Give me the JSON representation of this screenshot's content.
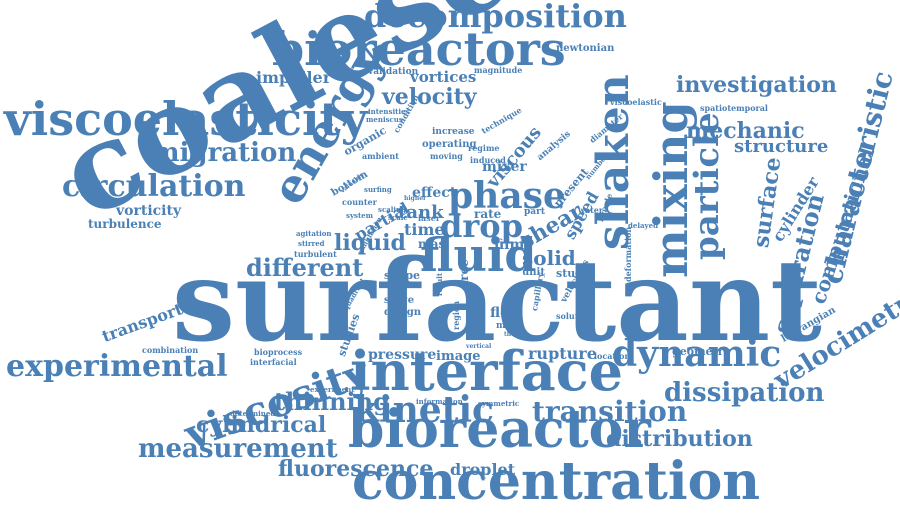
{
  "color": "#4a80b5",
  "words": [
    {
      "id": "coalescence",
      "text": "coalescence"
    },
    {
      "id": "surfactant",
      "text": "surfactant"
    },
    {
      "id": "interface",
      "text": "interface"
    },
    {
      "id": "bioreactor",
      "text": "bioreactor"
    },
    {
      "id": "concentration",
      "text": "concentration"
    },
    {
      "id": "bioreactors",
      "text": "bioreactors"
    },
    {
      "id": "decomposition",
      "text": "decomposition"
    },
    {
      "id": "viscoelasticity",
      "text": "viscoelasticity"
    },
    {
      "id": "energy",
      "text": "energy"
    },
    {
      "id": "fluid",
      "text": "fluid"
    },
    {
      "id": "mixing",
      "text": "mixing"
    },
    {
      "id": "shaken",
      "text": "shaken"
    },
    {
      "id": "phase",
      "text": "phase"
    },
    {
      "id": "drop",
      "text": "drop"
    },
    {
      "id": "viscosity",
      "text": "viscosity"
    },
    {
      "id": "kinetic",
      "text": "kinetic"
    },
    {
      "id": "dynamic",
      "text": "dynamic"
    },
    {
      "id": "transition",
      "text": "transition"
    },
    {
      "id": "experimental",
      "text": "experimental"
    },
    {
      "id": "circulation",
      "text": "circulation"
    },
    {
      "id": "migration",
      "text": "migration"
    },
    {
      "id": "particle",
      "text": "particle"
    },
    {
      "id": "characteristic",
      "text": "characteristic"
    },
    {
      "id": "separation",
      "text": "separation"
    },
    {
      "id": "velocimetry",
      "text": "velocimetry"
    },
    {
      "id": "computational",
      "text": "computational"
    },
    {
      "id": "investigation",
      "text": "investigation"
    },
    {
      "id": "mechanic",
      "text": "mechanic"
    },
    {
      "id": "structure",
      "text": "structure"
    },
    {
      "id": "surface",
      "text": "surface"
    },
    {
      "id": "cylinder",
      "text": "cylinder"
    },
    {
      "id": "dissipation",
      "text": "dissipation"
    },
    {
      "id": "distribution",
      "text": "distribution"
    },
    {
      "id": "measurement",
      "text": "measurement"
    },
    {
      "id": "cylindrical",
      "text": "cylindrical"
    },
    {
      "id": "thinning",
      "text": "thinning"
    },
    {
      "id": "fluorescence",
      "text": "fluorescence"
    },
    {
      "id": "droplet",
      "text": "droplet"
    },
    {
      "id": "different",
      "text": "different"
    },
    {
      "id": "liquid",
      "text": "liquid"
    },
    {
      "id": "velocity",
      "text": "velocity"
    },
    {
      "id": "impeller",
      "text": "impeller"
    },
    {
      "id": "vortices",
      "text": "vortices"
    },
    {
      "id": "vorticity",
      "text": "vorticity"
    },
    {
      "id": "turbulence",
      "text": "turbulence"
    },
    {
      "id": "transport",
      "text": "transport"
    },
    {
      "id": "viscous",
      "text": "viscous"
    },
    {
      "id": "shear",
      "text": "shear"
    },
    {
      "id": "solid",
      "text": "solid"
    },
    {
      "id": "speed",
      "text": "speed"
    },
    {
      "id": "geometry",
      "text": "geometry"
    },
    {
      "id": "lagrangian",
      "text": "lagrangian"
    },
    {
      "id": "rupture",
      "text": "rupture"
    },
    {
      "id": "pressure",
      "text": "pressure"
    },
    {
      "id": "image",
      "text": "image"
    },
    {
      "id": "partial",
      "text": "partial"
    },
    {
      "id": "studies",
      "text": "studies"
    },
    {
      "id": "time",
      "text": "time"
    },
    {
      "id": "tank",
      "text": "tank"
    },
    {
      "id": "mas",
      "text": "mas"
    },
    {
      "id": "film",
      "text": "film"
    },
    {
      "id": "effect",
      "text": "effect"
    },
    {
      "id": "rate",
      "text": "rate"
    },
    {
      "id": "mixer",
      "text": "mixer"
    },
    {
      "id": "present",
      "text": "present"
    },
    {
      "id": "organic",
      "text": "organic"
    },
    {
      "id": "bottom",
      "text": "bottom"
    },
    {
      "id": "newtonian",
      "text": "newtonian"
    },
    {
      "id": "validation",
      "text": "validation"
    },
    {
      "id": "magnitude",
      "text": "magnitude"
    },
    {
      "id": "increase",
      "text": "increase"
    },
    {
      "id": "operating",
      "text": "operating"
    },
    {
      "id": "moving",
      "text": "moving"
    },
    {
      "id": "regime",
      "text": "regime"
    },
    {
      "id": "induced",
      "text": "induced"
    },
    {
      "id": "analysis",
      "text": "analysis"
    },
    {
      "id": "technique",
      "text": "technique"
    },
    {
      "id": "viscoelastic",
      "text": "viscoelastic"
    },
    {
      "id": "spatiotemporal",
      "text": "spatiotemporal"
    },
    {
      "id": "intensities",
      "text": "intensities"
    },
    {
      "id": "meniscus",
      "text": "meniscus"
    },
    {
      "id": "condition",
      "text": "condition"
    },
    {
      "id": "ambient",
      "text": "ambient"
    },
    {
      "id": "surfing",
      "text": "surfing"
    },
    {
      "id": "system",
      "text": "system"
    },
    {
      "id": "scaling",
      "text": "scaling"
    },
    {
      "id": "scale",
      "text": "scale"
    },
    {
      "id": "laser",
      "text": "laser"
    },
    {
      "id": "agitation",
      "text": "agitation"
    },
    {
      "id": "stirred",
      "text": "stirred"
    },
    {
      "id": "turbulent",
      "text": "turbulent"
    },
    {
      "id": "shape",
      "text": "shape"
    },
    {
      "id": "stage",
      "text": "stage"
    },
    {
      "id": "design",
      "text": "design"
    },
    {
      "id": "flow",
      "text": "flow"
    },
    {
      "id": "mode",
      "text": "mode"
    },
    {
      "id": "free",
      "text": "free"
    },
    {
      "id": "region",
      "text": "region"
    },
    {
      "id": "unit",
      "text": "unit"
    },
    {
      "id": "study",
      "text": "study"
    },
    {
      "id": "part",
      "text": "part"
    },
    {
      "id": "capillary",
      "text": "capillary"
    },
    {
      "id": "solution",
      "text": "solution"
    },
    {
      "id": "location",
      "text": "location"
    },
    {
      "id": "water",
      "text": "water"
    },
    {
      "id": "velocities",
      "text": "velocities"
    },
    {
      "id": "froude",
      "text": "froude"
    },
    {
      "id": "deformation",
      "text": "deformation"
    },
    {
      "id": "delayed",
      "text": "delayed"
    },
    {
      "id": "diameter",
      "text": "diameter"
    },
    {
      "id": "number",
      "text": "number"
    },
    {
      "id": "combination",
      "text": "combination"
    },
    {
      "id": "bioprocess",
      "text": "bioprocess"
    },
    {
      "id": "interfacial",
      "text": "interfacial"
    },
    {
      "id": "experiment",
      "text": "experiment"
    },
    {
      "id": "determined",
      "text": "determined"
    },
    {
      "id": "information",
      "text": "information"
    },
    {
      "id": "symmetric",
      "text": "symmetric"
    },
    {
      "id": "vertical",
      "text": "vertical"
    },
    {
      "id": "quadrant",
      "text": "quadrant"
    },
    {
      "id": "simulation",
      "text": "simulation"
    },
    {
      "id": "counter",
      "text": "counter"
    },
    {
      "id": "valuable",
      "text": "valuable"
    },
    {
      "id": "higher",
      "text": "higher"
    },
    {
      "id": "result",
      "text": "result"
    },
    {
      "id": "thesis",
      "text": "thesis"
    }
  ]
}
